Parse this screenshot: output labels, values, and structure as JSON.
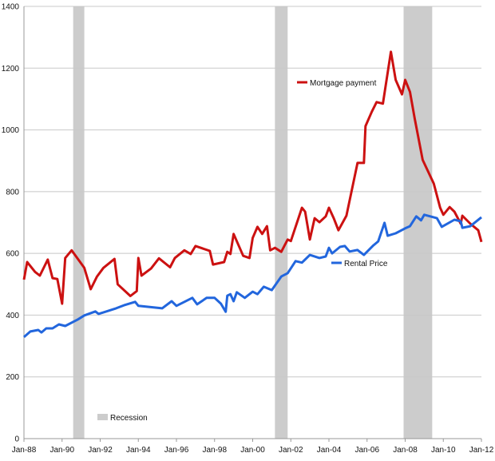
{
  "chart_data": {
    "type": "line",
    "title": "",
    "xlabel": "",
    "ylabel": "",
    "ylim": [
      0,
      1400
    ],
    "yticks": [
      "0",
      "200",
      "400",
      "600",
      "800",
      "1000",
      "1200",
      "1400"
    ],
    "xlim": [
      "1988-01",
      "2012-01"
    ],
    "xticks": [
      "Jan-88",
      "Jan-90",
      "Jan-92",
      "Jan-94",
      "Jan-96",
      "Jan-98",
      "Jan-00",
      "Jan-02",
      "Jan-04",
      "Jan-06",
      "Jan-08",
      "Jan-10",
      "Jan-12"
    ],
    "grid": true,
    "legend_placement": "inline",
    "colors": {
      "mortgage": "#cc1111",
      "rental": "#2266dd",
      "recession": "#cccccc"
    },
    "recession_label": "Recession",
    "recessions": [
      [
        "1990-08",
        "1991-03"
      ],
      [
        "2001-03",
        "2001-11"
      ],
      [
        "2007-12",
        "2009-06"
      ]
    ],
    "series": [
      {
        "name": "Mortgage payment",
        "points": [
          [
            "1988-01",
            515
          ],
          [
            "1988-03",
            572
          ],
          [
            "1988-08",
            540
          ],
          [
            "1988-11",
            528
          ],
          [
            "1989-04",
            580
          ],
          [
            "1989-07",
            520
          ],
          [
            "1989-10",
            517
          ],
          [
            "1990-01",
            437
          ],
          [
            "1990-03",
            585
          ],
          [
            "1990-07",
            610
          ],
          [
            "1991-03",
            553
          ],
          [
            "1991-07",
            484
          ],
          [
            "1991-11",
            525
          ],
          [
            "1992-03",
            553
          ],
          [
            "1992-10",
            582
          ],
          [
            "1992-12",
            500
          ],
          [
            "1993-08",
            462
          ],
          [
            "1993-12",
            478
          ],
          [
            "1994-01",
            585
          ],
          [
            "1994-03",
            528
          ],
          [
            "1994-09",
            551
          ],
          [
            "1995-02",
            584
          ],
          [
            "1995-09",
            555
          ],
          [
            "1995-12",
            585
          ],
          [
            "1996-06",
            610
          ],
          [
            "1996-10",
            598
          ],
          [
            "1997-01",
            624
          ],
          [
            "1997-10",
            608
          ],
          [
            "1997-12",
            564
          ],
          [
            "1998-07",
            572
          ],
          [
            "1998-09",
            605
          ],
          [
            "1998-11",
            598
          ],
          [
            "1999-01",
            663
          ],
          [
            "1999-07",
            592
          ],
          [
            "1999-11",
            585
          ],
          [
            "2000-01",
            650
          ],
          [
            "2000-04",
            686
          ],
          [
            "2000-07",
            663
          ],
          [
            "2000-10",
            688
          ],
          [
            "2000-12",
            610
          ],
          [
            "2001-03",
            618
          ],
          [
            "2001-07",
            605
          ],
          [
            "2001-11",
            645
          ],
          [
            "2002-01",
            640
          ],
          [
            "2002-08",
            748
          ],
          [
            "2002-10",
            735
          ],
          [
            "2003-01",
            645
          ],
          [
            "2003-04",
            714
          ],
          [
            "2003-07",
            701
          ],
          [
            "2003-11",
            720
          ],
          [
            "2004-01",
            748
          ],
          [
            "2004-04",
            714
          ],
          [
            "2004-07",
            675
          ],
          [
            "2004-12",
            722
          ],
          [
            "2005-07",
            893
          ],
          [
            "2005-11",
            893
          ],
          [
            "2005-12",
            1012
          ],
          [
            "2006-04",
            1059
          ],
          [
            "2006-07",
            1090
          ],
          [
            "2006-11",
            1085
          ],
          [
            "2007-04",
            1253
          ],
          [
            "2007-07",
            1162
          ],
          [
            "2007-11",
            1115
          ],
          [
            "2008-01",
            1162
          ],
          [
            "2008-04",
            1123
          ],
          [
            "2008-07",
            1037
          ],
          [
            "2008-12",
            903
          ],
          [
            "2009-07",
            826
          ],
          [
            "2009-11",
            748
          ],
          [
            "2010-01",
            725
          ],
          [
            "2010-05",
            750
          ],
          [
            "2010-08",
            735
          ],
          [
            "2010-12",
            696
          ],
          [
            "2011-01",
            722
          ],
          [
            "2011-06",
            696
          ],
          [
            "2011-11",
            675
          ],
          [
            "2012-01",
            637
          ]
        ]
      },
      {
        "name": "Rental Price",
        "points": [
          [
            "1988-01",
            329
          ],
          [
            "1988-05",
            347
          ],
          [
            "1988-10",
            352
          ],
          [
            "1988-12",
            344
          ],
          [
            "1989-03",
            357
          ],
          [
            "1989-07",
            357
          ],
          [
            "1989-11",
            370
          ],
          [
            "1990-03",
            365
          ],
          [
            "1990-11",
            386
          ],
          [
            "1991-03",
            399
          ],
          [
            "1991-10",
            412
          ],
          [
            "1991-12",
            404
          ],
          [
            "1992-11",
            422
          ],
          [
            "1993-04",
            432
          ],
          [
            "1993-11",
            443
          ],
          [
            "1994-01",
            430
          ],
          [
            "1995-04",
            422
          ],
          [
            "1995-10",
            445
          ],
          [
            "1996-01",
            430
          ],
          [
            "1996-11",
            456
          ],
          [
            "1997-02",
            435
          ],
          [
            "1997-08",
            456
          ],
          [
            "1998-01",
            456
          ],
          [
            "1998-05",
            437
          ],
          [
            "1998-08",
            411
          ],
          [
            "1998-09",
            463
          ],
          [
            "1998-11",
            468
          ],
          [
            "1999-01",
            445
          ],
          [
            "1999-03",
            474
          ],
          [
            "1999-08",
            456
          ],
          [
            "2000-01",
            476
          ],
          [
            "2000-04",
            468
          ],
          [
            "2000-08",
            492
          ],
          [
            "2001-01",
            481
          ],
          [
            "2001-07",
            525
          ],
          [
            "2001-11",
            536
          ],
          [
            "2002-04",
            575
          ],
          [
            "2002-08",
            570
          ],
          [
            "2003-01",
            595
          ],
          [
            "2003-07",
            585
          ],
          [
            "2003-11",
            590
          ],
          [
            "2004-01",
            618
          ],
          [
            "2004-03",
            600
          ],
          [
            "2004-08",
            621
          ],
          [
            "2004-11",
            624
          ],
          [
            "2005-02",
            606
          ],
          [
            "2005-07",
            611
          ],
          [
            "2005-11",
            595
          ],
          [
            "2006-05",
            626
          ],
          [
            "2006-08",
            639
          ],
          [
            "2006-12",
            699
          ],
          [
            "2007-02",
            657
          ],
          [
            "2007-07",
            665
          ],
          [
            "2008-01",
            681
          ],
          [
            "2008-04",
            688
          ],
          [
            "2008-08",
            720
          ],
          [
            "2008-11",
            707
          ],
          [
            "2009-01",
            725
          ],
          [
            "2009-09",
            714
          ],
          [
            "2009-12",
            686
          ],
          [
            "2010-08",
            709
          ],
          [
            "2010-12",
            704
          ],
          [
            "2011-01",
            683
          ],
          [
            "2011-06",
            688
          ],
          [
            "2012-01",
            717
          ]
        ]
      }
    ]
  }
}
